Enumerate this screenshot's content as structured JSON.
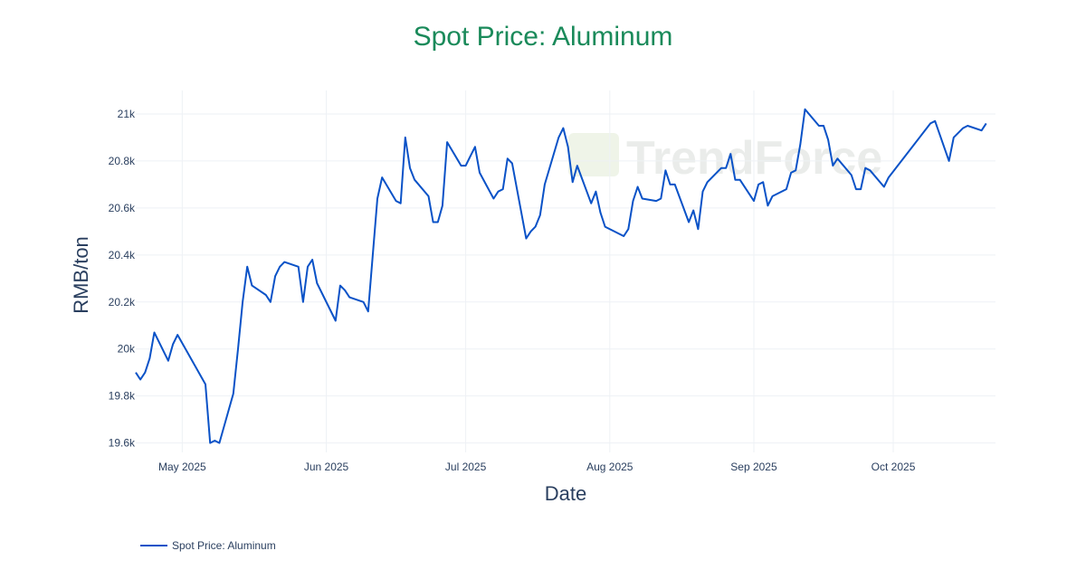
{
  "chart_data": {
    "type": "line",
    "title": "Spot Price: Aluminum",
    "xlabel": "Date",
    "ylabel": "RMB/ton",
    "title_color": "#1a8a5a",
    "line_color": "#0a52c7",
    "x_ticks": [
      {
        "date": "2025-05-01",
        "label": "May 2025"
      },
      {
        "date": "2025-06-01",
        "label": "Jun 2025"
      },
      {
        "date": "2025-07-01",
        "label": "Jul 2025"
      },
      {
        "date": "2025-08-01",
        "label": "Aug 2025"
      },
      {
        "date": "2025-09-01",
        "label": "Sep 2025"
      },
      {
        "date": "2025-10-01",
        "label": "Oct 2025"
      }
    ],
    "y_ticks": [
      {
        "value": 19600,
        "label": "19.6k"
      },
      {
        "value": 19800,
        "label": "19.8k"
      },
      {
        "value": 20000,
        "label": "20k"
      },
      {
        "value": 20200,
        "label": "20.2k"
      },
      {
        "value": 20400,
        "label": "20.4k"
      },
      {
        "value": 20600,
        "label": "20.6k"
      },
      {
        "value": 20800,
        "label": "20.8k"
      },
      {
        "value": 21000,
        "label": "21k"
      }
    ],
    "xlim": [
      "2025-04-21",
      "2025-10-23"
    ],
    "ylim": [
      19560,
      21100
    ],
    "grid": true,
    "legend_position": "bottom-left",
    "series": [
      {
        "name": "Spot Price: Aluminum",
        "points": [
          [
            "2025-04-21",
            19900
          ],
          [
            "2025-04-22",
            19870
          ],
          [
            "2025-04-23",
            19900
          ],
          [
            "2025-04-24",
            19960
          ],
          [
            "2025-04-25",
            20070
          ],
          [
            "2025-04-28",
            19950
          ],
          [
            "2025-04-29",
            20020
          ],
          [
            "2025-04-30",
            20060
          ],
          [
            "2025-05-06",
            19850
          ],
          [
            "2025-05-07",
            19600
          ],
          [
            "2025-05-08",
            19610
          ],
          [
            "2025-05-09",
            19600
          ],
          [
            "2025-05-12",
            19810
          ],
          [
            "2025-05-13",
            20000
          ],
          [
            "2025-05-14",
            20200
          ],
          [
            "2025-05-15",
            20350
          ],
          [
            "2025-05-16",
            20270
          ],
          [
            "2025-05-19",
            20230
          ],
          [
            "2025-05-20",
            20200
          ],
          [
            "2025-05-21",
            20310
          ],
          [
            "2025-05-22",
            20350
          ],
          [
            "2025-05-23",
            20370
          ],
          [
            "2025-05-26",
            20350
          ],
          [
            "2025-05-27",
            20200
          ],
          [
            "2025-05-28",
            20350
          ],
          [
            "2025-05-29",
            20380
          ],
          [
            "2025-05-30",
            20280
          ],
          [
            "2025-06-03",
            20120
          ],
          [
            "2025-06-04",
            20270
          ],
          [
            "2025-06-05",
            20250
          ],
          [
            "2025-06-06",
            20220
          ],
          [
            "2025-06-09",
            20200
          ],
          [
            "2025-06-10",
            20160
          ],
          [
            "2025-06-11",
            20400
          ],
          [
            "2025-06-12",
            20640
          ],
          [
            "2025-06-13",
            20730
          ],
          [
            "2025-06-16",
            20630
          ],
          [
            "2025-06-17",
            20620
          ],
          [
            "2025-06-18",
            20900
          ],
          [
            "2025-06-19",
            20770
          ],
          [
            "2025-06-20",
            20720
          ],
          [
            "2025-06-23",
            20650
          ],
          [
            "2025-06-24",
            20540
          ],
          [
            "2025-06-25",
            20540
          ],
          [
            "2025-06-26",
            20610
          ],
          [
            "2025-06-27",
            20880
          ],
          [
            "2025-06-30",
            20780
          ],
          [
            "2025-07-01",
            20780
          ],
          [
            "2025-07-02",
            20820
          ],
          [
            "2025-07-03",
            20860
          ],
          [
            "2025-07-04",
            20750
          ],
          [
            "2025-07-07",
            20640
          ],
          [
            "2025-07-08",
            20670
          ],
          [
            "2025-07-09",
            20680
          ],
          [
            "2025-07-10",
            20810
          ],
          [
            "2025-07-11",
            20790
          ],
          [
            "2025-07-14",
            20470
          ],
          [
            "2025-07-15",
            20500
          ],
          [
            "2025-07-16",
            20520
          ],
          [
            "2025-07-17",
            20570
          ],
          [
            "2025-07-18",
            20700
          ],
          [
            "2025-07-21",
            20900
          ],
          [
            "2025-07-22",
            20940
          ],
          [
            "2025-07-23",
            20860
          ],
          [
            "2025-07-24",
            20710
          ],
          [
            "2025-07-25",
            20780
          ],
          [
            "2025-07-28",
            20620
          ],
          [
            "2025-07-29",
            20670
          ],
          [
            "2025-07-30",
            20580
          ],
          [
            "2025-07-31",
            20520
          ],
          [
            "2025-08-04",
            20480
          ],
          [
            "2025-08-05",
            20510
          ],
          [
            "2025-08-06",
            20630
          ],
          [
            "2025-08-07",
            20690
          ],
          [
            "2025-08-08",
            20640
          ],
          [
            "2025-08-11",
            20630
          ],
          [
            "2025-08-12",
            20640
          ],
          [
            "2025-08-13",
            20760
          ],
          [
            "2025-08-14",
            20700
          ],
          [
            "2025-08-15",
            20700
          ],
          [
            "2025-08-18",
            20540
          ],
          [
            "2025-08-19",
            20590
          ],
          [
            "2025-08-20",
            20510
          ],
          [
            "2025-08-21",
            20670
          ],
          [
            "2025-08-22",
            20710
          ],
          [
            "2025-08-25",
            20770
          ],
          [
            "2025-08-26",
            20770
          ],
          [
            "2025-08-27",
            20830
          ],
          [
            "2025-08-28",
            20720
          ],
          [
            "2025-08-29",
            20720
          ],
          [
            "2025-09-01",
            20630
          ],
          [
            "2025-09-02",
            20700
          ],
          [
            "2025-09-03",
            20710
          ],
          [
            "2025-09-04",
            20610
          ],
          [
            "2025-09-05",
            20650
          ],
          [
            "2025-09-08",
            20680
          ],
          [
            "2025-09-09",
            20750
          ],
          [
            "2025-09-10",
            20760
          ],
          [
            "2025-09-11",
            20870
          ],
          [
            "2025-09-12",
            21020
          ],
          [
            "2025-09-15",
            20950
          ],
          [
            "2025-09-16",
            20950
          ],
          [
            "2025-09-17",
            20890
          ],
          [
            "2025-09-18",
            20780
          ],
          [
            "2025-09-19",
            20810
          ],
          [
            "2025-09-22",
            20740
          ],
          [
            "2025-09-23",
            20680
          ],
          [
            "2025-09-24",
            20680
          ],
          [
            "2025-09-25",
            20770
          ],
          [
            "2025-09-26",
            20760
          ],
          [
            "2025-09-29",
            20690
          ],
          [
            "2025-09-30",
            20730
          ],
          [
            "2025-10-09",
            20960
          ],
          [
            "2025-10-10",
            20970
          ],
          [
            "2025-10-13",
            20800
          ],
          [
            "2025-10-14",
            20900
          ],
          [
            "2025-10-15",
            20920
          ],
          [
            "2025-10-16",
            20940
          ],
          [
            "2025-10-17",
            20950
          ],
          [
            "2025-10-20",
            20930
          ],
          [
            "2025-10-21",
            20960
          ]
        ]
      }
    ]
  },
  "legend": {
    "items": [
      {
        "label": "Spot Price: Aluminum",
        "color": "#0a52c7"
      }
    ]
  },
  "watermark": {
    "logo_text": "TrendForce"
  }
}
